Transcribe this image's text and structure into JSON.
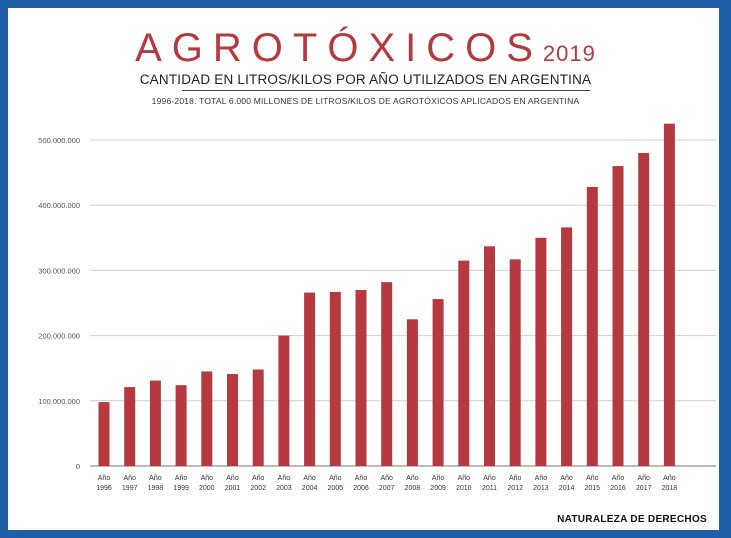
{
  "header": {
    "title": "AGROTÓXICOS",
    "title_year": "2019",
    "subtitle": "CANTIDAD EN LITROS/KILOS POR AÑO UTILIZADOS EN ARGENTINA",
    "note": "1996-2018. TOTAL 6.000 MILLONES DE LITROS/KILOS DE AGROTÓXICOS APLICADOS EN ARGENTINA",
    "credit": "NATURALEZA DE DERECHOS"
  },
  "colors": {
    "bar": "#b5393e",
    "frame": "#1f5fa8",
    "title": "#b53a3f"
  },
  "chart_data": {
    "type": "bar",
    "title": "AGROTÓXICOS 2019",
    "subtitle": "CANTIDAD EN LITROS/KILOS POR AÑO UTILIZADOS EN ARGENTINA",
    "xlabel": "",
    "ylabel": "",
    "ylim": [
      0,
      500000000
    ],
    "yticks": [
      0,
      100000000,
      200000000,
      300000000,
      400000000,
      500000000
    ],
    "ytick_labels": [
      "0",
      "100.000.000",
      "200.000.000",
      "300.000.000",
      "400.000.000",
      "500.000.000"
    ],
    "grid": true,
    "legend": "none",
    "categories": [
      {
        "line1": "Año",
        "line2": "1996"
      },
      {
        "line1": "Año",
        "line2": "1997"
      },
      {
        "line1": "Año",
        "line2": "1998"
      },
      {
        "line1": "Año",
        "line2": "1999"
      },
      {
        "line1": "Año",
        "line2": "2000"
      },
      {
        "line1": "Año",
        "line2": "2001"
      },
      {
        "line1": "Año",
        "line2": "2002"
      },
      {
        "line1": "Año",
        "line2": "2003"
      },
      {
        "line1": "Año",
        "line2": "2004"
      },
      {
        "line1": "Año",
        "line2": "2005"
      },
      {
        "line1": "Año",
        "line2": "2006"
      },
      {
        "line1": "Año",
        "line2": "2007"
      },
      {
        "line1": "Año",
        "line2": "2008"
      },
      {
        "line1": "Año",
        "line2": "2009"
      },
      {
        "line1": "Año",
        "line2": "2010"
      },
      {
        "line1": "Año",
        "line2": "2011"
      },
      {
        "line1": "Año",
        "line2": "2012"
      },
      {
        "line1": "Año",
        "line2": "2013"
      },
      {
        "line1": "Año",
        "line2": "2014"
      },
      {
        "line1": "Año",
        "line2": "2015"
      },
      {
        "line1": "Año",
        "line2": "2016"
      },
      {
        "line1": "Año",
        "line2": "2017"
      },
      {
        "line1": "Año",
        "line2": "2018"
      }
    ],
    "values": [
      98000000,
      121000000,
      131000000,
      124000000,
      145000000,
      141000000,
      148000000,
      200000000,
      266000000,
      267000000,
      270000000,
      282000000,
      225000000,
      256000000,
      315000000,
      337000000,
      317000000,
      350000000,
      366000000,
      428000000,
      460000000,
      480000000,
      525000000
    ]
  }
}
